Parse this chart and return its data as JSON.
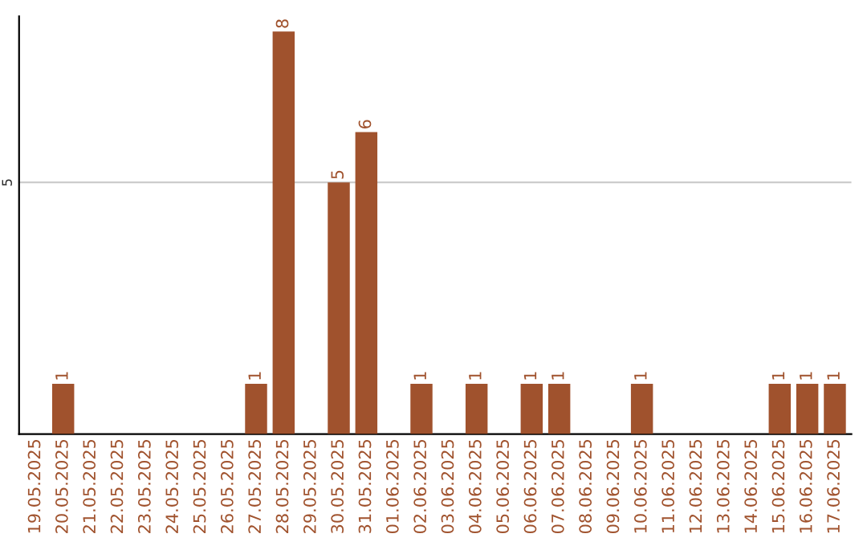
{
  "chart_data": {
    "type": "bar",
    "categories": [
      "19.05.2025",
      "20.05.2025",
      "21.05.2025",
      "22.05.2025",
      "23.05.2025",
      "24.05.2025",
      "25.05.2025",
      "26.05.2025",
      "27.05.2025",
      "28.05.2025",
      "29.05.2025",
      "30.05.2025",
      "31.05.2025",
      "01.06.2025",
      "02.06.2025",
      "03.06.2025",
      "04.06.2025",
      "05.06.2025",
      "06.06.2025",
      "07.06.2025",
      "08.06.2025",
      "09.06.2025",
      "10.06.2025",
      "11.06.2025",
      "12.06.2025",
      "13.06.2025",
      "14.06.2025",
      "15.06.2025",
      "16.06.2025",
      "17.06.2025"
    ],
    "values": [
      0,
      1,
      0,
      0,
      0,
      0,
      0,
      0,
      1,
      8,
      0,
      5,
      6,
      0,
      1,
      0,
      1,
      0,
      1,
      1,
      0,
      0,
      1,
      0,
      0,
      0,
      0,
      1,
      1,
      1
    ],
    "value_labels": [
      null,
      "1",
      null,
      null,
      null,
      null,
      null,
      null,
      "1",
      "8",
      null,
      "5",
      "6",
      null,
      "1",
      null,
      "1",
      null,
      "1",
      "1",
      null,
      null,
      "1",
      null,
      null,
      null,
      null,
      "1",
      "1",
      "1"
    ],
    "color": "#a0522d",
    "ylim": [
      0,
      8.3
    ],
    "yticks": [
      5
    ],
    "grid": "y"
  }
}
